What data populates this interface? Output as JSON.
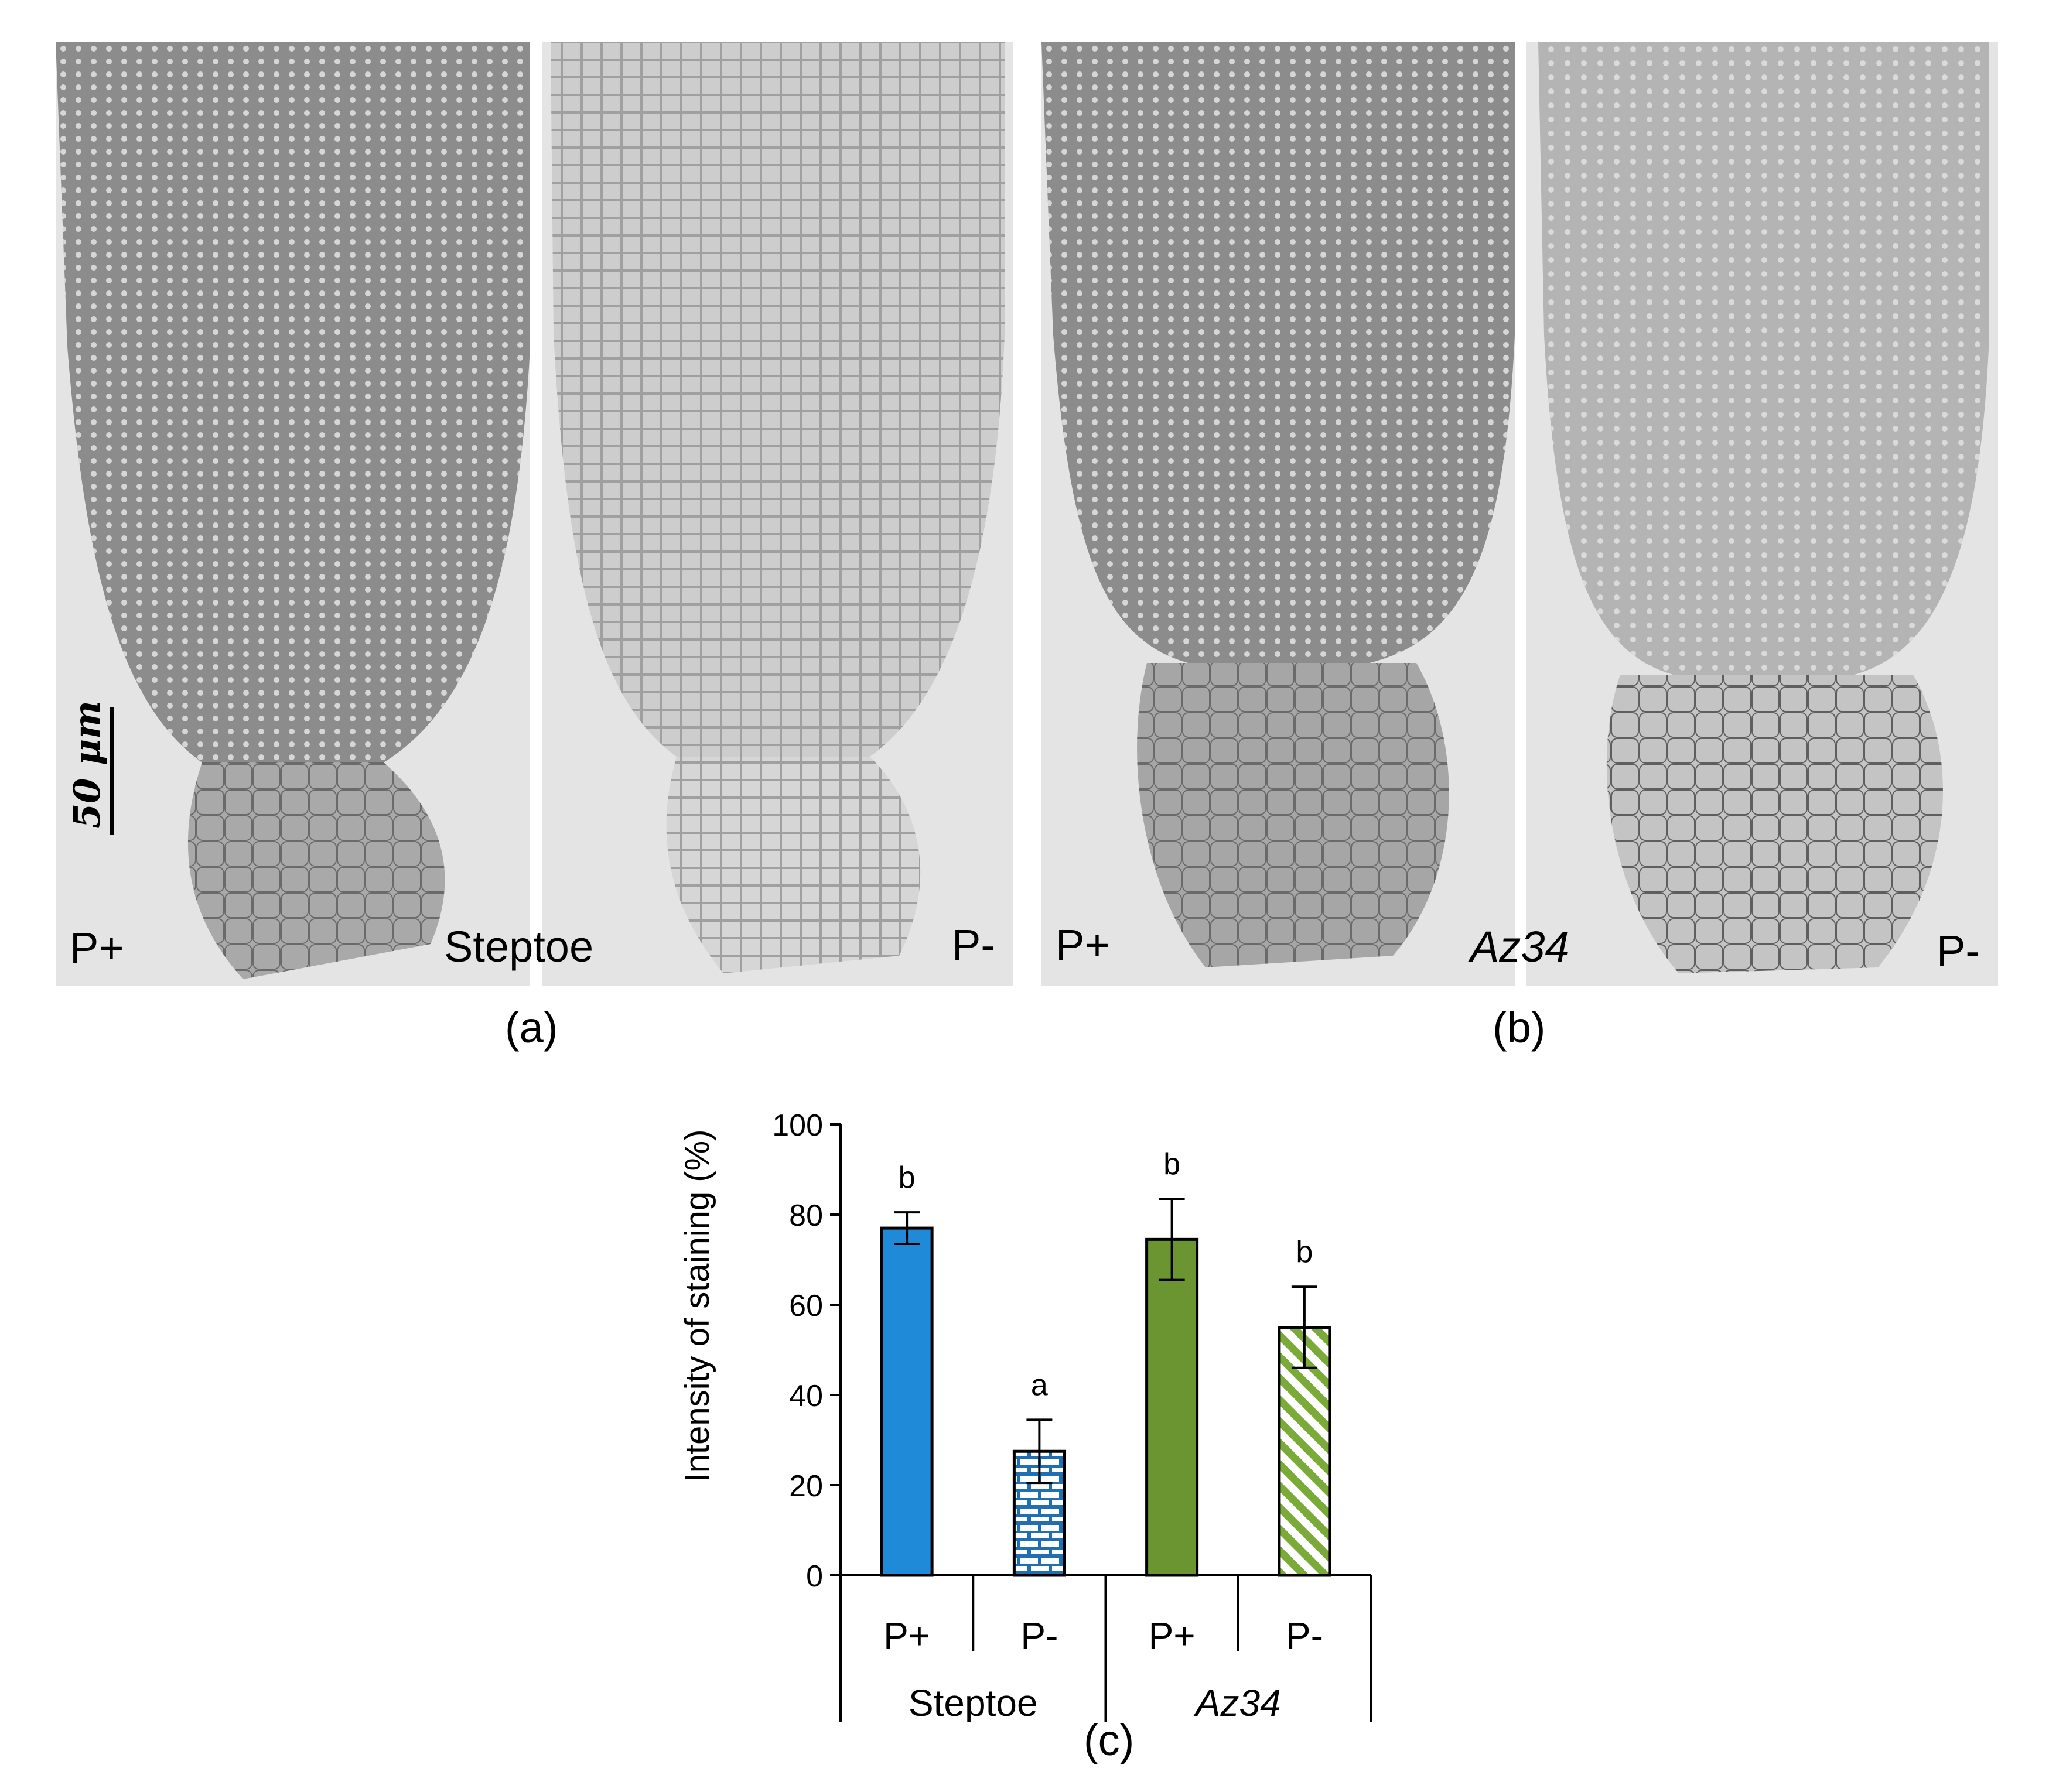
{
  "panels": {
    "steptoe_p_plus": {
      "corner_label": "P+"
    },
    "steptoe_p_minus": {
      "corner_label": "P-"
    },
    "steptoe_center_label": "Steptoe",
    "az34_p_plus": {
      "corner_label": "P+"
    },
    "az34_p_minus": {
      "corner_label": "P-"
    },
    "az34_center_label": "Az34",
    "scale_bar_label": "50 μm"
  },
  "captions": {
    "a": "(a)",
    "b": "(b)",
    "c": "(c)"
  },
  "colors": {
    "steptoe_p_plus": "#1f8ad8",
    "steptoe_p_minus": "#1f6fb2",
    "az34_p_plus": "#6a9530",
    "az34_p_minus": "#7aab38",
    "panel_background": "#e4e4e4",
    "tissue_dark": "#8c8c8c",
    "tissue_light": "#cdcdcd"
  },
  "chart_data": {
    "type": "bar",
    "ylabel": "Intensity of staining (%)",
    "ylim": [
      0,
      100
    ],
    "yticks": [
      0,
      20,
      40,
      60,
      80,
      100
    ],
    "categories": [
      "P+",
      "P-",
      "P+",
      "P-"
    ],
    "groups": [
      {
        "name": "Steptoe",
        "italic": false,
        "span": [
          0,
          1
        ]
      },
      {
        "name": "Az34",
        "italic": true,
        "span": [
          2,
          3
        ]
      }
    ],
    "values": [
      77,
      27.5,
      74.5,
      55
    ],
    "errors": [
      3.5,
      7,
      9,
      9
    ],
    "significance": [
      "b",
      "a",
      "b",
      "b"
    ],
    "fills": [
      "solid",
      "brick",
      "solid",
      "diagonal-stripes"
    ],
    "grid": false,
    "legend": false
  }
}
